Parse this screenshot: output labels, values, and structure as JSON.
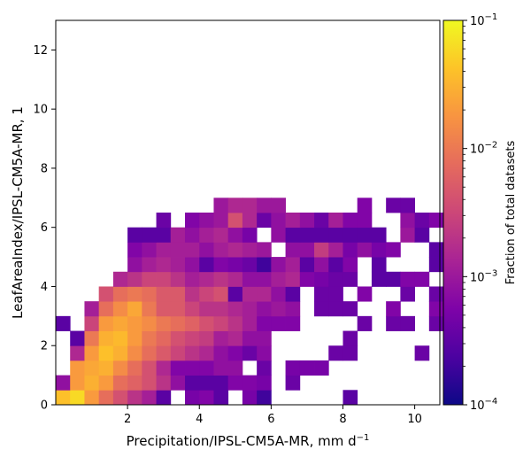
{
  "chart_data": {
    "type": "heatmap",
    "xlabel": "Precipitation/IPSL-CM5A-MR,  mm d",
    "xlabel_exp": "−1",
    "ylabel": "LeafAreaIndex/IPSL-CM5A-MR,  1",
    "xlim": [
      0.0,
      10.7
    ],
    "ylim": [
      0,
      13
    ],
    "xticks": [
      2,
      4,
      6,
      8,
      10
    ],
    "yticks": [
      0,
      2,
      4,
      6,
      8,
      10,
      12
    ],
    "bin_width_x": 0.4,
    "bin_height_y": 0.5,
    "colorbar": {
      "label": "Fraction of total datasets",
      "scale": "log",
      "colormap": "plasma",
      "range": [
        0.0001,
        0.1
      ],
      "ticks": [
        {
          "value": 0.1,
          "base": "10",
          "exp": "−1"
        },
        {
          "value": 0.01,
          "base": "10",
          "exp": "−2"
        },
        {
          "value": 0.001,
          "base": "10",
          "exp": "−3"
        },
        {
          "value": 0.0001,
          "base": "10",
          "exp": "−4"
        }
      ]
    },
    "bin_rows": [
      {
        "y": 0.0,
        "cells": [
          [
            0.0,
            0.04
          ],
          [
            0.4,
            0.06
          ],
          [
            0.8,
            0.02
          ],
          [
            1.2,
            0.008
          ],
          [
            1.6,
            0.004
          ],
          [
            2.0,
            0.002
          ],
          [
            2.4,
            0.0012
          ],
          [
            2.8,
            0.0003
          ],
          [
            3.6,
            0.0005
          ],
          [
            4.0,
            0.0006
          ],
          [
            4.4,
            0.0003
          ],
          [
            5.2,
            0.0005
          ],
          [
            5.6,
            0.0002
          ],
          [
            8.0,
            0.0003
          ]
        ]
      },
      {
        "y": 0.5,
        "cells": [
          [
            0.0,
            0.0008
          ],
          [
            0.4,
            0.02
          ],
          [
            0.8,
            0.03
          ],
          [
            1.2,
            0.02
          ],
          [
            1.6,
            0.008
          ],
          [
            2.0,
            0.006
          ],
          [
            2.4,
            0.004
          ],
          [
            2.8,
            0.002
          ],
          [
            3.2,
            0.0008
          ],
          [
            3.6,
            0.0003
          ],
          [
            4.0,
            0.0003
          ],
          [
            4.4,
            0.0003
          ],
          [
            4.8,
            0.0006
          ],
          [
            5.2,
            0.0006
          ],
          [
            5.6,
            0.0005
          ],
          [
            6.4,
            0.0004
          ]
        ]
      },
      {
        "y": 1.0,
        "cells": [
          [
            0.4,
            0.02
          ],
          [
            0.8,
            0.025
          ],
          [
            1.2,
            0.03
          ],
          [
            1.6,
            0.015
          ],
          [
            2.0,
            0.008
          ],
          [
            2.4,
            0.004
          ],
          [
            2.8,
            0.0015
          ],
          [
            3.2,
            0.0006
          ],
          [
            3.6,
            0.0006
          ],
          [
            4.0,
            0.0006
          ],
          [
            4.4,
            0.0008
          ],
          [
            4.8,
            0.0008
          ],
          [
            5.6,
            0.0004
          ],
          [
            6.4,
            0.0005
          ],
          [
            6.8,
            0.0005
          ],
          [
            7.2,
            0.0005
          ]
        ]
      },
      {
        "y": 1.5,
        "cells": [
          [
            0.4,
            0.0015
          ],
          [
            0.8,
            0.02
          ],
          [
            1.2,
            0.04
          ],
          [
            1.6,
            0.03
          ],
          [
            2.0,
            0.015
          ],
          [
            2.4,
            0.008
          ],
          [
            2.8,
            0.005
          ],
          [
            3.2,
            0.003
          ],
          [
            3.6,
            0.002
          ],
          [
            4.0,
            0.0015
          ],
          [
            4.4,
            0.0008
          ],
          [
            4.8,
            0.0006
          ],
          [
            5.2,
            0.0004
          ],
          [
            5.6,
            0.0007
          ],
          [
            7.6,
            0.0004
          ],
          [
            8.0,
            0.0004
          ],
          [
            10.0,
            0.0004
          ]
        ]
      },
      {
        "y": 2.0,
        "cells": [
          [
            0.4,
            0.0003
          ],
          [
            0.8,
            0.01
          ],
          [
            1.2,
            0.03
          ],
          [
            1.6,
            0.035
          ],
          [
            2.0,
            0.02
          ],
          [
            2.4,
            0.01
          ],
          [
            2.8,
            0.007
          ],
          [
            3.2,
            0.004
          ],
          [
            3.6,
            0.003
          ],
          [
            4.0,
            0.0025
          ],
          [
            4.4,
            0.0012
          ],
          [
            4.8,
            0.0015
          ],
          [
            5.2,
            0.0008
          ],
          [
            5.6,
            0.0008
          ],
          [
            8.0,
            0.0004
          ]
        ]
      },
      {
        "y": 2.5,
        "cells": [
          [
            0.0,
            0.0003
          ],
          [
            0.8,
            0.003
          ],
          [
            1.2,
            0.02
          ],
          [
            1.6,
            0.025
          ],
          [
            2.0,
            0.02
          ],
          [
            2.4,
            0.015
          ],
          [
            2.8,
            0.01
          ],
          [
            3.2,
            0.008
          ],
          [
            3.6,
            0.006
          ],
          [
            4.0,
            0.004
          ],
          [
            4.4,
            0.003
          ],
          [
            4.8,
            0.002
          ],
          [
            5.2,
            0.0012
          ],
          [
            5.6,
            0.0006
          ],
          [
            6.0,
            0.0006
          ],
          [
            6.4,
            0.0006
          ],
          [
            8.4,
            0.0004
          ],
          [
            9.2,
            0.0004
          ],
          [
            9.6,
            0.0004
          ],
          [
            10.4,
            0.0004
          ]
        ]
      },
      {
        "y": 3.0,
        "cells": [
          [
            0.8,
            0.0012
          ],
          [
            1.2,
            0.008
          ],
          [
            1.6,
            0.015
          ],
          [
            2.0,
            0.025
          ],
          [
            2.4,
            0.01
          ],
          [
            2.8,
            0.005
          ],
          [
            3.2,
            0.005
          ],
          [
            3.6,
            0.003
          ],
          [
            4.0,
            0.002
          ],
          [
            4.4,
            0.002
          ],
          [
            4.8,
            0.0015
          ],
          [
            5.2,
            0.0012
          ],
          [
            5.6,
            0.0008
          ],
          [
            6.0,
            0.001
          ],
          [
            6.4,
            0.0008
          ],
          [
            7.2,
            0.0004
          ],
          [
            7.6,
            0.0004
          ],
          [
            8.0,
            0.0004
          ],
          [
            9.2,
            0.0006
          ],
          [
            10.4,
            0.0006
          ]
        ]
      },
      {
        "y": 3.5,
        "cells": [
          [
            1.2,
            0.004
          ],
          [
            1.6,
            0.008
          ],
          [
            2.0,
            0.01
          ],
          [
            2.4,
            0.008
          ],
          [
            2.8,
            0.005
          ],
          [
            3.2,
            0.005
          ],
          [
            3.6,
            0.002
          ],
          [
            4.0,
            0.003
          ],
          [
            4.4,
            0.004
          ],
          [
            4.8,
            0.0003
          ],
          [
            5.2,
            0.0015
          ],
          [
            5.6,
            0.0015
          ],
          [
            6.0,
            0.0008
          ],
          [
            6.4,
            0.0003
          ],
          [
            7.2,
            0.0004
          ],
          [
            7.6,
            0.0004
          ],
          [
            8.4,
            0.0006
          ],
          [
            9.6,
            0.0004
          ],
          [
            10.4,
            0.0004
          ]
        ]
      },
      {
        "y": 4.0,
        "cells": [
          [
            1.6,
            0.0015
          ],
          [
            2.0,
            0.002
          ],
          [
            2.4,
            0.003
          ],
          [
            2.8,
            0.003
          ],
          [
            3.2,
            0.002
          ],
          [
            3.6,
            0.0012
          ],
          [
            4.0,
            0.0015
          ],
          [
            4.4,
            0.002
          ],
          [
            4.8,
            0.0015
          ],
          [
            5.2,
            0.0008
          ],
          [
            5.6,
            0.0008
          ],
          [
            6.0,
            0.0012
          ],
          [
            6.4,
            0.0015
          ],
          [
            6.8,
            0.0006
          ],
          [
            7.2,
            0.0005
          ],
          [
            7.6,
            0.0004
          ],
          [
            8.0,
            0.0004
          ],
          [
            8.8,
            0.0003
          ],
          [
            9.2,
            0.0003
          ],
          [
            9.6,
            0.0006
          ],
          [
            10.0,
            0.0006
          ]
        ]
      },
      {
        "y": 4.5,
        "cells": [
          [
            2.0,
            0.0008
          ],
          [
            2.4,
            0.0012
          ],
          [
            2.8,
            0.0015
          ],
          [
            3.2,
            0.0012
          ],
          [
            3.6,
            0.0008
          ],
          [
            4.0,
            0.0003
          ],
          [
            4.4,
            0.0006
          ],
          [
            4.8,
            0.0005
          ],
          [
            5.2,
            0.0004
          ],
          [
            5.6,
            0.0002
          ],
          [
            6.0,
            0.0008
          ],
          [
            6.4,
            0.0012
          ],
          [
            6.8,
            0.0003
          ],
          [
            7.2,
            0.0008
          ],
          [
            7.6,
            0.0003
          ],
          [
            8.0,
            0.0006
          ],
          [
            8.8,
            0.0003
          ],
          [
            10.4,
            0.0003
          ]
        ]
      },
      {
        "y": 5.0,
        "cells": [
          [
            2.0,
            0.0006
          ],
          [
            2.4,
            0.0008
          ],
          [
            2.8,
            0.0012
          ],
          [
            3.2,
            0.0012
          ],
          [
            3.6,
            0.0012
          ],
          [
            4.0,
            0.0008
          ],
          [
            4.4,
            0.0012
          ],
          [
            4.8,
            0.0015
          ],
          [
            5.2,
            0.0012
          ],
          [
            5.6,
            0.001
          ],
          [
            6.4,
            0.0008
          ],
          [
            6.8,
            0.0008
          ],
          [
            7.2,
            0.0025
          ],
          [
            7.6,
            0.0012
          ],
          [
            8.0,
            0.0005
          ],
          [
            8.4,
            0.0008
          ],
          [
            8.8,
            0.0005
          ],
          [
            9.2,
            0.0006
          ],
          [
            10.4,
            0.0003
          ]
        ]
      },
      {
        "y": 5.5,
        "cells": [
          [
            2.0,
            0.0003
          ],
          [
            2.4,
            0.0003
          ],
          [
            2.8,
            0.0003
          ],
          [
            3.2,
            0.0012
          ],
          [
            3.6,
            0.0008
          ],
          [
            4.0,
            0.0012
          ],
          [
            4.4,
            0.0015
          ],
          [
            4.8,
            0.0008
          ],
          [
            5.2,
            0.0005
          ],
          [
            6.0,
            0.0008
          ],
          [
            6.4,
            0.0003
          ],
          [
            6.8,
            0.0003
          ],
          [
            7.2,
            0.0003
          ],
          [
            7.6,
            0.0003
          ],
          [
            8.0,
            0.0003
          ],
          [
            8.4,
            0.0003
          ],
          [
            8.8,
            0.0003
          ],
          [
            9.6,
            0.001
          ],
          [
            10.0,
            0.0003
          ]
        ]
      },
      {
        "y": 6.0,
        "cells": [
          [
            2.8,
            0.0004
          ],
          [
            3.6,
            0.0006
          ],
          [
            4.0,
            0.0008
          ],
          [
            4.4,
            0.001
          ],
          [
            4.8,
            0.004
          ],
          [
            5.2,
            0.0015
          ],
          [
            5.6,
            0.0004
          ],
          [
            6.0,
            0.0008
          ],
          [
            6.4,
            0.0012
          ],
          [
            6.8,
            0.0008
          ],
          [
            7.2,
            0.0004
          ],
          [
            7.6,
            0.0012
          ],
          [
            8.0,
            0.0006
          ],
          [
            8.4,
            0.0006
          ],
          [
            9.6,
            0.0008
          ],
          [
            10.0,
            0.0004
          ],
          [
            10.4,
            0.0006
          ]
        ]
      },
      {
        "y": 6.5,
        "cells": [
          [
            4.4,
            0.001
          ],
          [
            4.8,
            0.0015
          ],
          [
            5.2,
            0.0015
          ],
          [
            5.6,
            0.001
          ],
          [
            6.0,
            0.001
          ],
          [
            8.4,
            0.0006
          ],
          [
            9.2,
            0.0004
          ],
          [
            9.6,
            0.0004
          ]
        ]
      }
    ]
  }
}
